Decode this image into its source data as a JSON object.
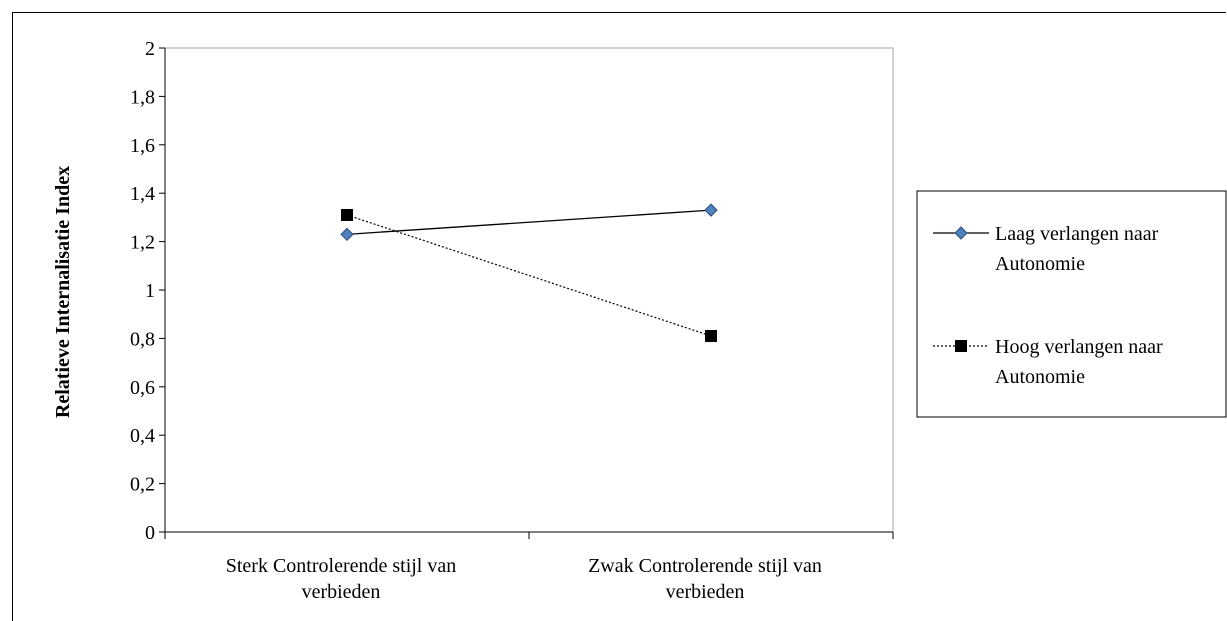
{
  "chart_data": {
    "type": "line",
    "title": "",
    "xlabel": "",
    "ylabel": "Relatieve Internalisatie Index",
    "ylim": [
      0,
      2
    ],
    "y_ticks": [
      "0",
      "0,2",
      "0,4",
      "0,6",
      "0,8",
      "1",
      "1,2",
      "1,4",
      "1,6",
      "1,8",
      "2"
    ],
    "categories": [
      [
        "Sterk  Controlerende stijl van",
        "verbieden"
      ],
      [
        "Zwak Controlerende stijl van",
        "verbieden"
      ]
    ],
    "grid": false,
    "legend_position": "right",
    "series": [
      {
        "name_lines": [
          "Laag verlangen naar",
          "Autonomie"
        ],
        "values": [
          1.23,
          1.33
        ],
        "line_style": "solid",
        "marker": "diamond",
        "marker_color": "#4f81bd",
        "line_color": "#000000"
      },
      {
        "name_lines": [
          "Hoog verlangen naar",
          "Autonomie"
        ],
        "values": [
          1.31,
          0.81
        ],
        "line_style": "dotted",
        "marker": "square",
        "marker_color": "#000000",
        "line_color": "#000000"
      }
    ]
  }
}
